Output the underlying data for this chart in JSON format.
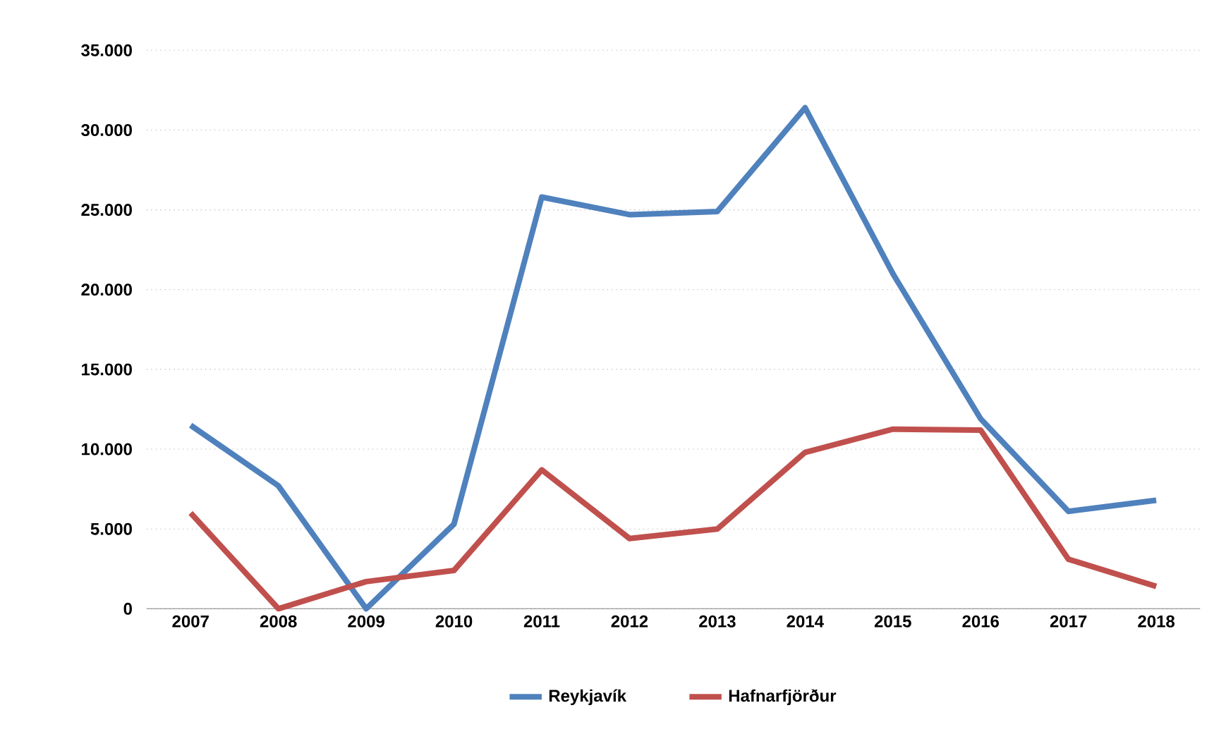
{
  "chart_data": {
    "type": "line",
    "categories": [
      "2007",
      "2008",
      "2009",
      "2010",
      "2011",
      "2012",
      "2013",
      "2014",
      "2015",
      "2016",
      "2017",
      "2018"
    ],
    "series": [
      {
        "name": "Reykjavík",
        "color": "#4f81bd",
        "values": [
          11500,
          7700,
          0,
          5300,
          25800,
          24700,
          24900,
          31400,
          21000,
          11900,
          6100,
          6800
        ]
      },
      {
        "name": "Hafnarfjörður",
        "color": "#c0504d",
        "values": [
          6000,
          0,
          1700,
          2400,
          8700,
          4400,
          5000,
          9800,
          11250,
          11200,
          3100,
          1400
        ]
      }
    ],
    "ylim": [
      0,
      35000
    ],
    "yticks": [
      {
        "value": 0,
        "label": "0"
      },
      {
        "value": 5000,
        "label": "5.000"
      },
      {
        "value": 10000,
        "label": "10.000"
      },
      {
        "value": 15000,
        "label": "15.000"
      },
      {
        "value": 20000,
        "label": "20.000"
      },
      {
        "value": 25000,
        "label": "25.000"
      },
      {
        "value": 30000,
        "label": "30.000"
      },
      {
        "value": 35000,
        "label": "35.000"
      }
    ],
    "grid": "y",
    "legend": "bottom",
    "marker": "none",
    "line_style": "solid"
  }
}
